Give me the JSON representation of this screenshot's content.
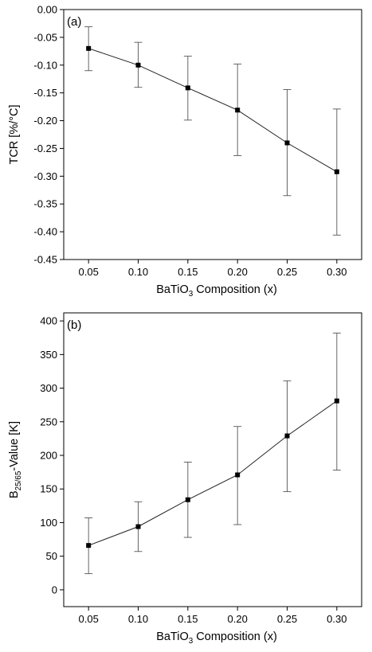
{
  "chart_data": [
    {
      "type": "line",
      "panel_label": "(a)",
      "xlabel": {
        "pre": "BaTiO",
        "sub": "3",
        "post": " Composition (x)"
      },
      "ylabel": {
        "pre": "TCR [%/°C]",
        "sub": "",
        "post": ""
      },
      "xlim": [
        0.025,
        0.325
      ],
      "ylim": [
        -0.45,
        0.0
      ],
      "x_ticks": [
        0.05,
        0.1,
        0.15,
        0.2,
        0.25,
        0.3
      ],
      "x_tick_labels": [
        "0.05",
        "0.10",
        "0.15",
        "0.20",
        "0.25",
        "0.30"
      ],
      "y_ticks": [
        0.0,
        -0.05,
        -0.1,
        -0.15,
        -0.2,
        -0.25,
        -0.3,
        -0.35,
        -0.4,
        -0.45
      ],
      "y_tick_labels": [
        "0.00",
        "-0.05",
        "-0.10",
        "-0.15",
        "-0.20",
        "-0.25",
        "-0.30",
        "-0.35",
        "-0.40",
        "-0.45"
      ],
      "grid": false,
      "series": [
        {
          "x": [
            0.05,
            0.1,
            0.15,
            0.2,
            0.25,
            0.3
          ],
          "y": [
            -0.07,
            -0.1,
            -0.141,
            -0.181,
            -0.24,
            -0.292
          ],
          "err_low": [
            -0.11,
            -0.14,
            -0.199,
            -0.263,
            -0.335,
            -0.406
          ],
          "err_high": [
            -0.031,
            -0.059,
            -0.084,
            -0.098,
            -0.144,
            -0.179
          ]
        }
      ]
    },
    {
      "type": "line",
      "panel_label": "(b)",
      "xlabel": {
        "pre": "BaTiO",
        "sub": "3",
        "post": " Composition (x)"
      },
      "ylabel": {
        "pre": "B",
        "sub": "25/65",
        "post": "-Value [K]"
      },
      "xlim": [
        0.025,
        0.325
      ],
      "ylim": [
        -25,
        412
      ],
      "x_ticks": [
        0.05,
        0.1,
        0.15,
        0.2,
        0.25,
        0.3
      ],
      "x_tick_labels": [
        "0.05",
        "0.10",
        "0.15",
        "0.20",
        "0.25",
        "0.30"
      ],
      "y_ticks": [
        0,
        50,
        100,
        150,
        200,
        250,
        300,
        350,
        400
      ],
      "y_tick_labels": [
        "0",
        "50",
        "100",
        "150",
        "200",
        "250",
        "300",
        "350",
        "400"
      ],
      "grid": false,
      "series": [
        {
          "x": [
            0.05,
            0.1,
            0.15,
            0.2,
            0.25,
            0.3
          ],
          "y": [
            66,
            94,
            134,
            171,
            229,
            281
          ],
          "err_low": [
            24,
            57,
            78,
            97,
            146,
            178
          ],
          "err_high": [
            107,
            131,
            190,
            243,
            311,
            382
          ]
        }
      ]
    }
  ]
}
